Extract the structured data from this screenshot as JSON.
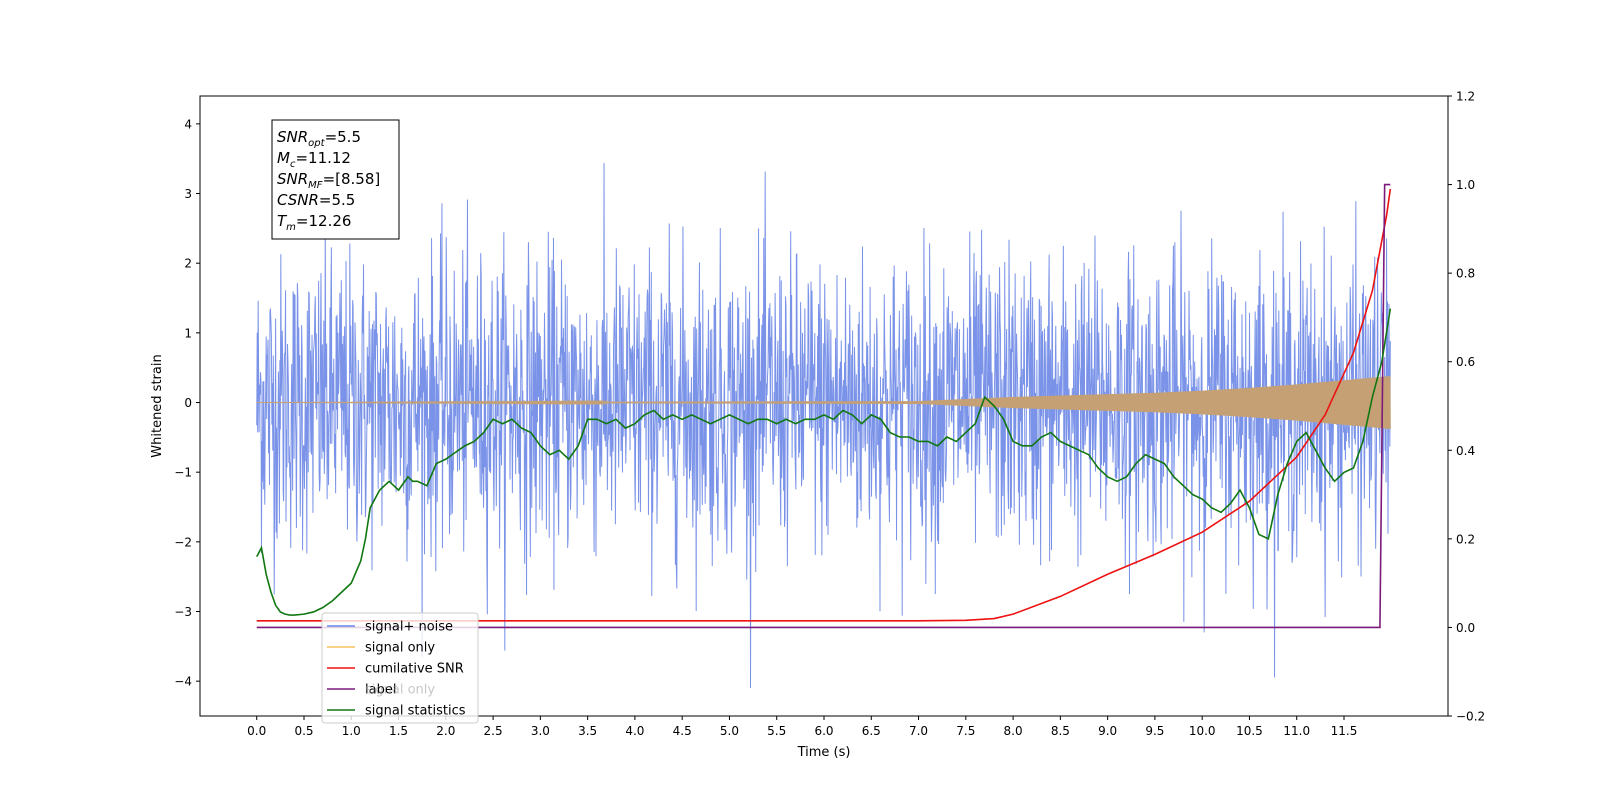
{
  "chart_data": {
    "type": "line",
    "xlabel": "Time (s)",
    "ylabel": "Whitened strain",
    "xlim": [
      -0.6,
      12.6
    ],
    "ylim": [
      -4.5,
      4.4
    ],
    "y2lim": [
      -0.2,
      1.2
    ],
    "x_ticks": [
      0.0,
      0.5,
      1.0,
      1.5,
      2.0,
      2.5,
      3.0,
      3.5,
      4.0,
      4.5,
      5.0,
      5.5,
      6.0,
      6.5,
      7.0,
      7.5,
      8.0,
      8.5,
      9.0,
      9.5,
      10.0,
      10.5,
      11.0,
      11.5
    ],
    "x_tick_labels": [
      "0.0",
      "0.5",
      "1.0",
      "1.5",
      "2.0",
      "2.5",
      "3.0",
      "3.5",
      "4.0",
      "4.5",
      "5.0",
      "5.5",
      "6.0",
      "6.5",
      "7.0",
      "7.5",
      "8.0",
      "8.5",
      "9.0",
      "9.5",
      "10.0",
      "10.5",
      "11.0",
      "11.5"
    ],
    "y_ticks": [
      -4,
      -3,
      -2,
      -1,
      0,
      1,
      2,
      3,
      4
    ],
    "y_tick_labels": [
      "−4",
      "−3",
      "−2",
      "−1",
      "0",
      "1",
      "2",
      "3",
      "4"
    ],
    "y2_ticks": [
      -0.2,
      0.0,
      0.2,
      0.4,
      0.6,
      0.8,
      1.0,
      1.2
    ],
    "y2_tick_labels": [
      "−0.2",
      "0.0",
      "0.2",
      "0.4",
      "0.6",
      "0.8",
      "1.0",
      "1.2"
    ],
    "grid": false,
    "legend_position": "bottom-left",
    "colors": {
      "noise": "#6b87e6",
      "signal": "#f5c060",
      "signal_fill": "#c4a074",
      "csnr": "#ee1111",
      "label": "#7b1a7b",
      "stats": "#117711"
    },
    "series": [
      {
        "name": "signal+ noise",
        "axis": "left",
        "kind": "noise-band",
        "x_range": [
          0.0,
          11.99
        ],
        "y_typical_range": [
          -2.2,
          2.4
        ],
        "y_extremes": [
          -4.1,
          4.05
        ]
      },
      {
        "name": "signal only",
        "axis": "left",
        "kind": "chirp",
        "x_range": [
          0.0,
          11.99
        ],
        "amplitude": [
          [
            0.0,
            0.0
          ],
          [
            7.0,
            0.02
          ],
          [
            7.5,
            0.05
          ],
          [
            8.0,
            0.08
          ],
          [
            8.5,
            0.1
          ],
          [
            9.0,
            0.12
          ],
          [
            9.5,
            0.14
          ],
          [
            10.0,
            0.17
          ],
          [
            10.5,
            0.21
          ],
          [
            11.0,
            0.26
          ],
          [
            11.5,
            0.32
          ],
          [
            11.99,
            0.38
          ]
        ]
      },
      {
        "name": "cumilative SNR",
        "axis": "right",
        "x": [
          0.0,
          7.0,
          7.5,
          7.8,
          8.0,
          8.5,
          9.0,
          9.5,
          10.0,
          10.5,
          11.0,
          11.3,
          11.6,
          11.8,
          11.95,
          11.99
        ],
        "y": [
          0.015,
          0.015,
          0.016,
          0.02,
          0.03,
          0.07,
          0.12,
          0.165,
          0.215,
          0.285,
          0.385,
          0.48,
          0.62,
          0.76,
          0.93,
          0.99
        ]
      },
      {
        "name": "label",
        "axis": "right",
        "x": [
          0.0,
          11.88,
          11.93,
          11.99
        ],
        "y": [
          0.0,
          0.0,
          1.0,
          1.0
        ]
      },
      {
        "name": "signal statistics",
        "axis": "right",
        "x": [
          0.0,
          0.05,
          0.1,
          0.15,
          0.2,
          0.25,
          0.3,
          0.35,
          0.4,
          0.5,
          0.6,
          0.7,
          0.8,
          0.9,
          1.0,
          1.1,
          1.15,
          1.2,
          1.3,
          1.4,
          1.45,
          1.5,
          1.6,
          1.65,
          1.7,
          1.8,
          1.9,
          2.0,
          2.1,
          2.2,
          2.3,
          2.4,
          2.5,
          2.6,
          2.7,
          2.8,
          2.9,
          3.0,
          3.1,
          3.2,
          3.3,
          3.4,
          3.5,
          3.6,
          3.7,
          3.8,
          3.9,
          4.0,
          4.1,
          4.2,
          4.3,
          4.4,
          4.5,
          4.6,
          4.7,
          4.8,
          4.9,
          5.0,
          5.1,
          5.2,
          5.3,
          5.4,
          5.5,
          5.6,
          5.7,
          5.8,
          5.9,
          6.0,
          6.1,
          6.2,
          6.3,
          6.4,
          6.5,
          6.6,
          6.7,
          6.8,
          6.9,
          7.0,
          7.1,
          7.2,
          7.3,
          7.4,
          7.5,
          7.6,
          7.7,
          7.75,
          7.8,
          7.9,
          8.0,
          8.1,
          8.2,
          8.3,
          8.4,
          8.5,
          8.6,
          8.7,
          8.8,
          8.9,
          9.0,
          9.1,
          9.2,
          9.3,
          9.4,
          9.5,
          9.6,
          9.7,
          9.8,
          9.9,
          10.0,
          10.1,
          10.2,
          10.3,
          10.4,
          10.5,
          10.6,
          10.7,
          10.8,
          10.9,
          11.0,
          11.1,
          11.2,
          11.3,
          11.4,
          11.5,
          11.6,
          11.7,
          11.8,
          11.9,
          11.99
        ],
        "y": [
          0.16,
          0.18,
          0.12,
          0.08,
          0.05,
          0.035,
          0.03,
          0.028,
          0.028,
          0.03,
          0.035,
          0.045,
          0.06,
          0.08,
          0.1,
          0.15,
          0.2,
          0.27,
          0.31,
          0.33,
          0.32,
          0.31,
          0.34,
          0.33,
          0.33,
          0.32,
          0.37,
          0.38,
          0.395,
          0.41,
          0.42,
          0.44,
          0.47,
          0.46,
          0.47,
          0.45,
          0.44,
          0.41,
          0.39,
          0.4,
          0.38,
          0.41,
          0.47,
          0.47,
          0.46,
          0.47,
          0.45,
          0.46,
          0.48,
          0.49,
          0.47,
          0.48,
          0.47,
          0.48,
          0.47,
          0.46,
          0.47,
          0.48,
          0.47,
          0.46,
          0.47,
          0.47,
          0.46,
          0.47,
          0.46,
          0.47,
          0.47,
          0.48,
          0.47,
          0.49,
          0.48,
          0.46,
          0.48,
          0.47,
          0.44,
          0.43,
          0.43,
          0.42,
          0.42,
          0.41,
          0.43,
          0.42,
          0.44,
          0.46,
          0.52,
          0.51,
          0.5,
          0.47,
          0.42,
          0.41,
          0.41,
          0.43,
          0.44,
          0.42,
          0.41,
          0.4,
          0.39,
          0.36,
          0.34,
          0.33,
          0.34,
          0.37,
          0.39,
          0.38,
          0.37,
          0.34,
          0.32,
          0.3,
          0.29,
          0.27,
          0.26,
          0.28,
          0.31,
          0.27,
          0.21,
          0.2,
          0.3,
          0.37,
          0.42,
          0.44,
          0.4,
          0.36,
          0.33,
          0.35,
          0.36,
          0.42,
          0.52,
          0.6,
          0.72
        ]
      }
    ],
    "annotation_lines": [
      {
        "name": "SNR",
        "sub": "opt",
        "value": "=5.5"
      },
      {
        "name": "M",
        "sub": "c",
        "value": "=11.12"
      },
      {
        "name": "SNR",
        "sub": "MF",
        "value": "=[8.58]"
      },
      {
        "name": "CSNR",
        "sub": "",
        "value": "=5.5"
      },
      {
        "name": "T",
        "sub": "m",
        "value": "=12.26"
      }
    ],
    "legend": [
      {
        "label": "signal+ noise",
        "color": "#6b87e6"
      },
      {
        "label": "signal only",
        "color": "#f5c060"
      },
      {
        "label": "cumilative SNR",
        "color": "#ee1111"
      },
      {
        "label": "label",
        "color": "#7b1a7b"
      },
      {
        "label": "signal statistics",
        "color": "#117711"
      }
    ],
    "legend_hidden_text": "signal only"
  }
}
